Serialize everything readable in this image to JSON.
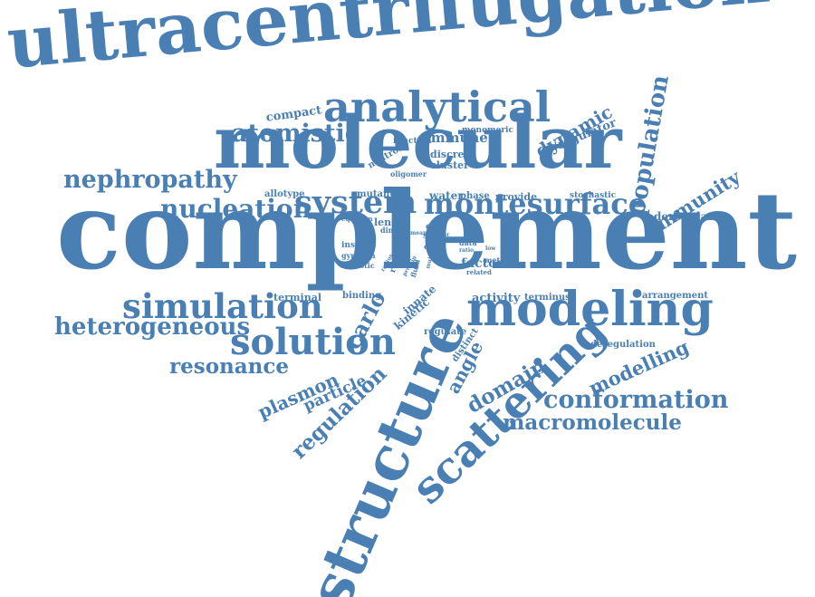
{
  "colors": {
    "word": "#4a7fb3",
    "background": "#ffffff"
  },
  "words": [
    {
      "text": "complement"
    },
    {
      "text": "ultracentrifugation"
    },
    {
      "text": "molecular"
    },
    {
      "text": "structure"
    },
    {
      "text": "modeling"
    },
    {
      "text": "scattering"
    },
    {
      "text": "analytical"
    },
    {
      "text": "montesurface"
    },
    {
      "text": "solution"
    },
    {
      "text": "simulation"
    },
    {
      "text": "system"
    },
    {
      "text": "nucleation"
    },
    {
      "text": "nephropathy"
    },
    {
      "text": "atomistic"
    },
    {
      "text": "heterogeneous"
    },
    {
      "text": "conformation"
    },
    {
      "text": "macromolecule"
    },
    {
      "text": "population"
    },
    {
      "text": "immunity"
    },
    {
      "text": "resonance"
    },
    {
      "text": "regulation"
    },
    {
      "text": "domain"
    },
    {
      "text": "modelling"
    },
    {
      "text": "plasmon"
    },
    {
      "text": "particle"
    },
    {
      "text": "carlo"
    },
    {
      "text": "dynamic"
    },
    {
      "text": "immune"
    },
    {
      "text": "angle"
    },
    {
      "text": "factor"
    },
    {
      "text": "regulator"
    },
    {
      "text": "deregulator"
    },
    {
      "text": "compact"
    },
    {
      "text": "activity"
    },
    {
      "text": "terminus"
    },
    {
      "text": "arrangement"
    },
    {
      "text": "deregulation"
    },
    {
      "text": "regulate"
    },
    {
      "text": "distinct"
    },
    {
      "text": "kinetic"
    },
    {
      "text": "innate"
    },
    {
      "text": "binding"
    },
    {
      "text": "terminal"
    },
    {
      "text": "water"
    },
    {
      "text": "phase"
    },
    {
      "text": "provide"
    },
    {
      "text": "stochastic"
    },
    {
      "text": "cfhr"
    },
    {
      "text": "sax"
    },
    {
      "text": "cell"
    },
    {
      "text": "data"
    },
    {
      "text": "ratio"
    },
    {
      "text": "method"
    },
    {
      "text": "related"
    },
    {
      "text": "neutron"
    },
    {
      "text": "function"
    },
    {
      "text": "monomeric"
    },
    {
      "text": "discrete"
    },
    {
      "text": "cluster"
    },
    {
      "text": "oligomer"
    },
    {
      "text": "allotype"
    },
    {
      "text": "mutant"
    },
    {
      "text": "length"
    },
    {
      "text": "dimer"
    },
    {
      "text": "equation"
    },
    {
      "text": "insight"
    },
    {
      "text": "gyration"
    },
    {
      "text": "realistic"
    },
    {
      "text": "mean"
    },
    {
      "text": "reveal"
    },
    {
      "text": "fluid"
    },
    {
      "text": "order"
    },
    {
      "text": "low"
    },
    {
      "text": "protein"
    },
    {
      "text": "radius"
    },
    {
      "text": "multiple"
    }
  ]
}
